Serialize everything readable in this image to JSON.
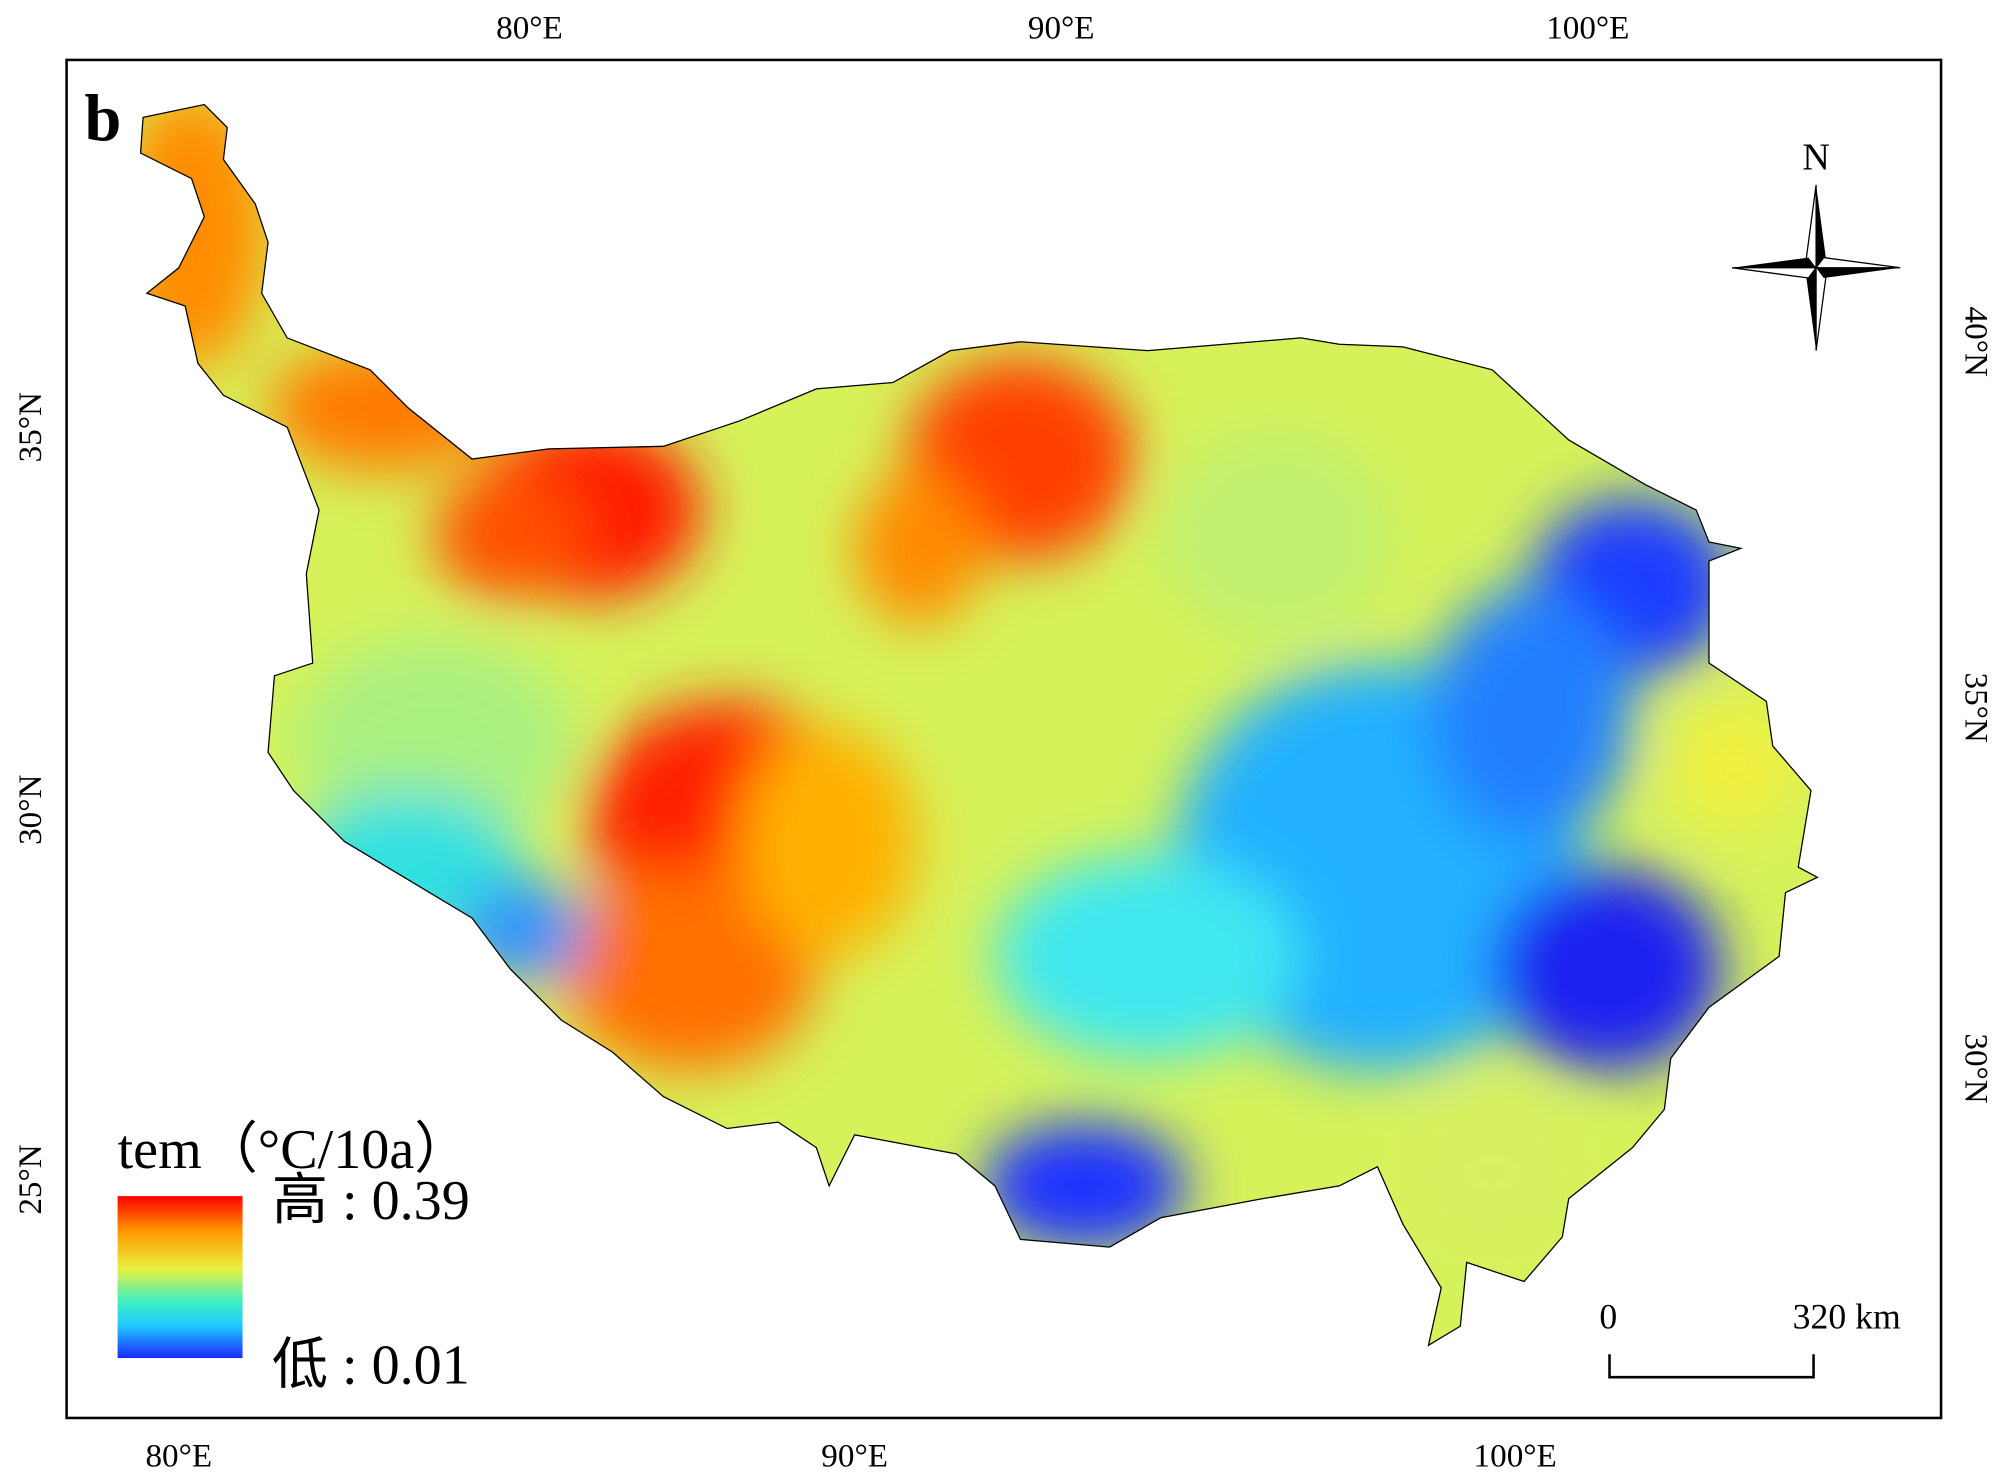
{
  "panel_label": "b",
  "axes": {
    "top": [
      "80°E",
      "90°E",
      "100°E"
    ],
    "bottom": [
      "80°E",
      "90°E",
      "100°E"
    ],
    "left": [
      "35°N",
      "30°N",
      "25°N"
    ],
    "right": [
      "40°N",
      "35°N",
      "30°N"
    ]
  },
  "north_arrow": "N",
  "scale_bar": {
    "start": "0",
    "end": "320 km"
  },
  "legend": {
    "title": "tem（°C/10a）",
    "high": "高 : 0.39",
    "low": "低 : 0.01"
  }
}
